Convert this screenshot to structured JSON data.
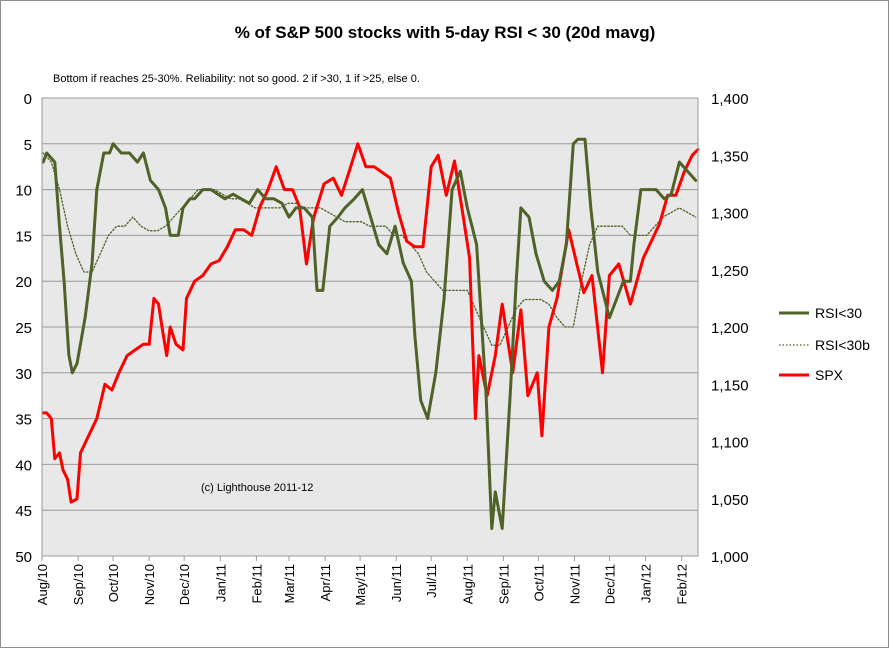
{
  "chart_data": {
    "type": "line",
    "title": "% of S&P 500 stocks with 5-day RSI < 30 (20d mavg)",
    "subtitle": "Bottom if reaches 25-30%. Reliability: not so good. 2 if >30, 1 if >25, else 0.",
    "annotation": "(c) Lighthouse 2011-12",
    "grid": true,
    "legend_position": "right",
    "x_axis": {
      "type": "date",
      "range": [
        "2010-08-01",
        "2012-02-15"
      ],
      "tick_labels": [
        "Aug/10",
        "Sep/10",
        "Oct/10",
        "Nov/10",
        "Dec/10",
        "Jan/11",
        "Feb/11",
        "Mar/11",
        "Apr/11",
        "May/11",
        "Jun/11",
        "Jul/11",
        "Aug/11",
        "Sep/11",
        "Oct/11",
        "Nov/11",
        "Dec/11",
        "Jan/12",
        "Feb/12"
      ]
    },
    "y_left": {
      "range": [
        0,
        50
      ],
      "reversed": true,
      "tick_labels": [
        "0",
        "5",
        "10",
        "15",
        "20",
        "25",
        "30",
        "35",
        "40",
        "45",
        "50"
      ]
    },
    "y_right": {
      "range": [
        1000,
        1400
      ],
      "tick_labels": [
        "1,000",
        "1,050",
        "1,100",
        "1,150",
        "1,200",
        "1,250",
        "1,300",
        "1,350",
        "1,400"
      ]
    },
    "series": [
      {
        "name": "RSI<30",
        "axis": "left",
        "color": "#4f6228",
        "style": "solid",
        "x": [
          "2010-08-02",
          "2010-08-05",
          "2010-08-12",
          "2010-08-16",
          "2010-08-20",
          "2010-08-24",
          "2010-08-27",
          "2010-08-31",
          "2010-09-07",
          "2010-09-13",
          "2010-09-17",
          "2010-09-23",
          "2010-09-28",
          "2010-10-01",
          "2010-10-08",
          "2010-10-15",
          "2010-10-22",
          "2010-10-27",
          "2010-11-02",
          "2010-11-09",
          "2010-11-15",
          "2010-11-19",
          "2010-11-26",
          "2010-11-30",
          "2010-12-06",
          "2010-12-10",
          "2010-12-17",
          "2010-12-24",
          "2010-12-30",
          "2011-01-05",
          "2011-01-12",
          "2011-01-19",
          "2011-01-26",
          "2011-02-02",
          "2011-02-09",
          "2011-02-16",
          "2011-02-23",
          "2011-03-01",
          "2011-03-07",
          "2011-03-14",
          "2011-03-21",
          "2011-03-25",
          "2011-03-30",
          "2011-04-05",
          "2011-04-12",
          "2011-04-18",
          "2011-04-26",
          "2011-05-03",
          "2011-05-10",
          "2011-05-17",
          "2011-05-24",
          "2011-05-31",
          "2011-06-07",
          "2011-06-14",
          "2011-06-17",
          "2011-06-22",
          "2011-06-28",
          "2011-07-05",
          "2011-07-12",
          "2011-07-19",
          "2011-07-26",
          "2011-08-01",
          "2011-08-05",
          "2011-08-09",
          "2011-08-12",
          "2011-08-17",
          "2011-08-22",
          "2011-08-25",
          "2011-08-31",
          "2011-09-07",
          "2011-09-12",
          "2011-09-16",
          "2011-09-23",
          "2011-09-29",
          "2011-10-06",
          "2011-10-13",
          "2011-10-19",
          "2011-10-25",
          "2011-10-31",
          "2011-11-04",
          "2011-11-10",
          "2011-11-15",
          "2011-11-21",
          "2011-11-25",
          "2011-12-01",
          "2011-12-07",
          "2011-12-13",
          "2011-12-19",
          "2011-12-22",
          "2011-12-28",
          "2012-01-04",
          "2012-01-10",
          "2012-01-17",
          "2012-01-23",
          "2012-01-30",
          "2012-02-06",
          "2012-02-13"
        ],
        "values": [
          7,
          6,
          7,
          14,
          20,
          28,
          30,
          29,
          24,
          18,
          10,
          6,
          6,
          5,
          6,
          6,
          7,
          6,
          9,
          10,
          12,
          15,
          15,
          12,
          11,
          11,
          10,
          10,
          10.5,
          11,
          10.5,
          11,
          11.5,
          10,
          11,
          11,
          11.5,
          13,
          12,
          12,
          13,
          21,
          21,
          14,
          13,
          12,
          11,
          10,
          13,
          16,
          17,
          14,
          18,
          20,
          26,
          33,
          35,
          30,
          22,
          10,
          8,
          12,
          14,
          16,
          22,
          32,
          47,
          43,
          47,
          32,
          20,
          12,
          13,
          17,
          20,
          21,
          20,
          16,
          5,
          4.5,
          4.5,
          12,
          19,
          21,
          24,
          22,
          20,
          20,
          16,
          10,
          10,
          10,
          11,
          10.5,
          7,
          8,
          9
        ]
      },
      {
        "name": "RSI<30b",
        "axis": "left",
        "color": "#4f6228",
        "style": "dotted",
        "x": [
          "2010-08-02",
          "2010-08-09",
          "2010-08-16",
          "2010-08-23",
          "2010-08-30",
          "2010-09-06",
          "2010-09-13",
          "2010-09-20",
          "2010-09-27",
          "2010-10-04",
          "2010-10-11",
          "2010-10-18",
          "2010-10-25",
          "2010-11-01",
          "2010-11-08",
          "2010-11-15",
          "2010-11-22",
          "2010-11-29",
          "2010-12-06",
          "2010-12-13",
          "2010-12-20",
          "2010-12-27",
          "2011-01-03",
          "2011-01-10",
          "2011-01-17",
          "2011-01-24",
          "2011-01-31",
          "2011-02-07",
          "2011-02-14",
          "2011-02-21",
          "2011-02-28",
          "2011-03-07",
          "2011-03-14",
          "2011-03-21",
          "2011-03-28",
          "2011-04-04",
          "2011-04-11",
          "2011-04-18",
          "2011-04-25",
          "2011-05-02",
          "2011-05-09",
          "2011-05-16",
          "2011-05-23",
          "2011-05-30",
          "2011-06-06",
          "2011-06-13",
          "2011-06-20",
          "2011-06-27",
          "2011-07-04",
          "2011-07-11",
          "2011-07-18",
          "2011-07-25",
          "2011-08-01",
          "2011-08-08",
          "2011-08-15",
          "2011-08-22",
          "2011-08-29",
          "2011-09-05",
          "2011-09-12",
          "2011-09-19",
          "2011-09-26",
          "2011-10-03",
          "2011-10-10",
          "2011-10-17",
          "2011-10-24",
          "2011-10-31",
          "2011-11-07",
          "2011-11-14",
          "2011-11-21",
          "2011-11-28",
          "2011-12-05",
          "2011-12-12",
          "2011-12-19",
          "2011-12-26",
          "2012-01-02",
          "2012-01-09",
          "2012-01-16",
          "2012-01-23",
          "2012-01-30",
          "2012-02-06",
          "2012-02-13"
        ],
        "values": [
          6,
          7,
          10,
          14,
          17,
          19,
          19,
          17,
          15,
          14,
          14,
          13,
          14,
          14.5,
          14.5,
          14,
          13,
          12,
          11,
          10,
          10,
          10,
          10.5,
          11,
          11,
          11.5,
          12,
          12,
          12,
          12,
          11.5,
          11.5,
          12,
          12,
          12,
          12.5,
          13,
          13.5,
          13.5,
          13.5,
          14,
          14,
          14,
          15,
          15,
          16,
          17,
          19,
          20,
          21,
          21,
          21,
          21,
          23,
          25,
          27,
          27,
          25,
          23,
          22,
          22,
          22,
          22.5,
          24,
          25,
          25,
          20,
          16,
          14,
          14,
          14,
          14,
          15,
          15,
          15,
          14,
          13,
          12.5,
          12,
          12.5,
          13
        ]
      },
      {
        "name": "SPX",
        "axis": "right",
        "color": "#ff0000",
        "style": "solid",
        "x": [
          "2010-08-02",
          "2010-08-05",
          "2010-08-09",
          "2010-08-12",
          "2010-08-16",
          "2010-08-19",
          "2010-08-23",
          "2010-08-26",
          "2010-08-31",
          "2010-09-03",
          "2010-09-10",
          "2010-09-17",
          "2010-09-24",
          "2010-09-30",
          "2010-10-06",
          "2010-10-13",
          "2010-10-20",
          "2010-10-27",
          "2010-11-01",
          "2010-11-05",
          "2010-11-09",
          "2010-11-12",
          "2010-11-16",
          "2010-11-19",
          "2010-11-24",
          "2010-11-30",
          "2010-12-03",
          "2010-12-10",
          "2010-12-17",
          "2010-12-24",
          "2010-12-31",
          "2011-01-07",
          "2011-01-14",
          "2011-01-21",
          "2011-01-28",
          "2011-02-04",
          "2011-02-11",
          "2011-02-18",
          "2011-02-25",
          "2011-03-04",
          "2011-03-10",
          "2011-03-16",
          "2011-03-22",
          "2011-03-31",
          "2011-04-08",
          "2011-04-15",
          "2011-04-22",
          "2011-04-29",
          "2011-05-06",
          "2011-05-13",
          "2011-05-20",
          "2011-05-27",
          "2011-06-03",
          "2011-06-10",
          "2011-06-17",
          "2011-06-24",
          "2011-07-01",
          "2011-07-07",
          "2011-07-14",
          "2011-07-21",
          "2011-07-28",
          "2011-08-03",
          "2011-08-08",
          "2011-08-11",
          "2011-08-18",
          "2011-08-25",
          "2011-08-31",
          "2011-09-09",
          "2011-09-16",
          "2011-09-22",
          "2011-09-30",
          "2011-10-04",
          "2011-10-10",
          "2011-10-17",
          "2011-10-27",
          "2011-11-03",
          "2011-11-09",
          "2011-11-16",
          "2011-11-25",
          "2011-12-01",
          "2011-12-09",
          "2011-12-19",
          "2011-12-30",
          "2012-01-06",
          "2012-01-13",
          "2012-01-20",
          "2012-01-27",
          "2012-02-03",
          "2012-02-10",
          "2012-02-15"
        ],
        "values": [
          1125,
          1125,
          1120,
          1085,
          1090,
          1075,
          1067,
          1047,
          1050,
          1090,
          1105,
          1120,
          1150,
          1145,
          1160,
          1175,
          1180,
          1185,
          1185,
          1225,
          1220,
          1200,
          1175,
          1200,
          1185,
          1180,
          1225,
          1240,
          1245,
          1255,
          1258,
          1270,
          1285,
          1285,
          1280,
          1305,
          1320,
          1340,
          1320,
          1320,
          1305,
          1255,
          1295,
          1325,
          1330,
          1315,
          1337,
          1360,
          1340,
          1340,
          1335,
          1330,
          1300,
          1275,
          1270,
          1270,
          1340,
          1350,
          1315,
          1345,
          1300,
          1260,
          1120,
          1175,
          1140,
          1175,
          1220,
          1160,
          1215,
          1140,
          1160,
          1105,
          1200,
          1225,
          1285,
          1255,
          1230,
          1245,
          1160,
          1245,
          1255,
          1220,
          1260,
          1275,
          1290,
          1315,
          1315,
          1335,
          1350,
          1355
        ]
      }
    ]
  }
}
